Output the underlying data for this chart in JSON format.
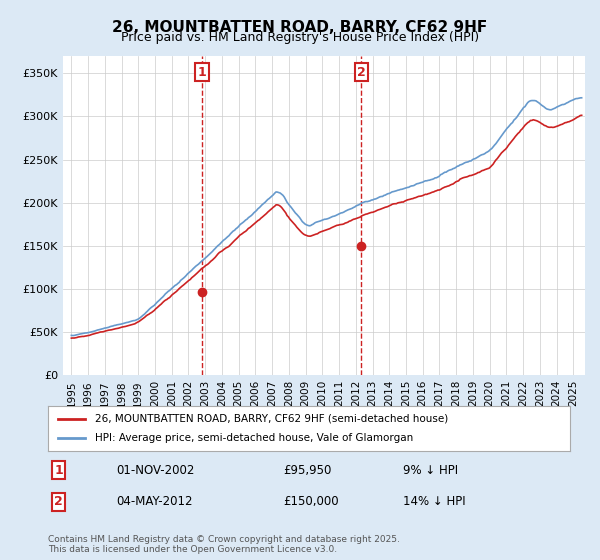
{
  "title1": "26, MOUNTBATTEN ROAD, BARRY, CF62 9HF",
  "title2": "Price paid vs. HM Land Registry's House Price Index (HPI)",
  "legend_line1": "26, MOUNTBATTEN ROAD, BARRY, CF62 9HF (semi-detached house)",
  "legend_line2": "HPI: Average price, semi-detached house, Vale of Glamorgan",
  "footnote": "Contains HM Land Registry data © Crown copyright and database right 2025.\nThis data is licensed under the Open Government Licence v3.0.",
  "annotation1_label": "1",
  "annotation1_date": "01-NOV-2002",
  "annotation1_price": "£95,950",
  "annotation1_hpi": "9% ↓ HPI",
  "annotation2_label": "2",
  "annotation2_date": "04-MAY-2012",
  "annotation2_price": "£150,000",
  "annotation2_hpi": "14% ↓ HPI",
  "sale1_x": 2002.83,
  "sale1_y": 95950,
  "sale2_x": 2012.34,
  "sale2_y": 150000,
  "hpi_color": "#6699cc",
  "price_color": "#cc2222",
  "annotation_color": "#cc2222",
  "background_color": "#dce9f5",
  "plot_bg_color": "#ffffff",
  "ylim": [
    0,
    370000
  ],
  "xlim_start": 1994.5,
  "xlim_end": 2025.7,
  "yticks": [
    0,
    50000,
    100000,
    150000,
    200000,
    250000,
    300000,
    350000
  ],
  "ytick_labels": [
    "£0",
    "£50K",
    "£100K",
    "£150K",
    "£200K",
    "£250K",
    "£300K",
    "£350K"
  ],
  "xticks": [
    1995,
    1996,
    1997,
    1998,
    1999,
    2000,
    2001,
    2002,
    2003,
    2004,
    2005,
    2006,
    2007,
    2008,
    2009,
    2010,
    2011,
    2012,
    2013,
    2014,
    2015,
    2016,
    2017,
    2018,
    2019,
    2020,
    2021,
    2022,
    2023,
    2024,
    2025
  ],
  "vline1_x": 2002.83,
  "vline2_x": 2012.34,
  "vline_color": "#cc2222"
}
